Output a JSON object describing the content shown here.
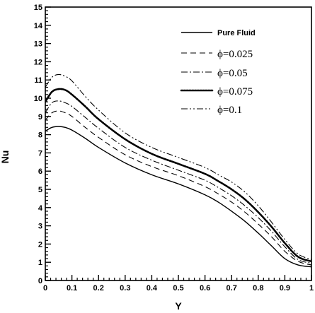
{
  "chart_data": {
    "type": "line",
    "xlabel": "Y",
    "ylabel": "Nu",
    "xlim": [
      0,
      1
    ],
    "ylim": [
      0,
      15
    ],
    "x_ticks": [
      0,
      0.1,
      0.2,
      0.3,
      0.4,
      0.5,
      0.6,
      0.7,
      0.8,
      0.9,
      1
    ],
    "x_tick_labels": [
      "0",
      "0.1",
      "0.2",
      "0.3",
      "0.4",
      "0.5",
      "0.6",
      "0.7",
      "0.8",
      "0.9",
      "1"
    ],
    "y_ticks": [
      0,
      1,
      2,
      3,
      4,
      5,
      6,
      7,
      8,
      9,
      10,
      11,
      12,
      13,
      14,
      15
    ],
    "y_tick_labels": [
      "0",
      "1",
      "2",
      "3",
      "4",
      "5",
      "6",
      "7",
      "8",
      "9",
      "10",
      "11",
      "12",
      "13",
      "14",
      "15"
    ],
    "grid": false,
    "legend_position": "top-right",
    "x": [
      0.0,
      0.025,
      0.05,
      0.075,
      0.1,
      0.15,
      0.2,
      0.3,
      0.4,
      0.5,
      0.6,
      0.65,
      0.7,
      0.75,
      0.8,
      0.85,
      0.9,
      0.95,
      1.0
    ],
    "series": [
      {
        "name": "Pure Fluid",
        "dash": "solid",
        "color": "#000000",
        "values": [
          8.2,
          8.4,
          8.45,
          8.4,
          8.25,
          7.8,
          7.3,
          6.45,
          5.8,
          5.3,
          4.7,
          4.3,
          3.8,
          3.25,
          2.6,
          1.9,
          1.2,
          0.85,
          0.75
        ]
      },
      {
        "name": "ϕ=0.025",
        "dash": "dash",
        "color": "#000000",
        "values": [
          8.8,
          9.2,
          9.3,
          9.2,
          9.0,
          8.4,
          7.85,
          6.9,
          6.25,
          5.75,
          5.15,
          4.75,
          4.3,
          3.75,
          3.1,
          2.4,
          1.6,
          1.05,
          0.85
        ]
      },
      {
        "name": "ϕ=0.05",
        "dash": "dashdot",
        "color": "#000000",
        "values": [
          9.2,
          9.75,
          9.85,
          9.75,
          9.55,
          8.95,
          8.35,
          7.3,
          6.6,
          6.05,
          5.5,
          5.1,
          4.65,
          4.1,
          3.45,
          2.7,
          1.85,
          1.15,
          0.95
        ]
      },
      {
        "name": "ϕ=0.075",
        "dash": "dot",
        "color": "#000000",
        "values": [
          9.8,
          10.35,
          10.5,
          10.45,
          10.2,
          9.55,
          8.85,
          7.75,
          6.95,
          6.4,
          5.85,
          5.45,
          5.0,
          4.45,
          3.75,
          2.95,
          2.05,
          1.3,
          1.05
        ]
      },
      {
        "name": "ϕ=0.1",
        "dash": "dashdotdot",
        "color": "#000000",
        "values": [
          10.6,
          11.15,
          11.3,
          11.2,
          10.95,
          10.1,
          9.35,
          8.1,
          7.3,
          6.75,
          6.2,
          5.8,
          5.4,
          4.85,
          4.1,
          3.2,
          2.25,
          1.45,
          1.15
        ]
      }
    ]
  }
}
